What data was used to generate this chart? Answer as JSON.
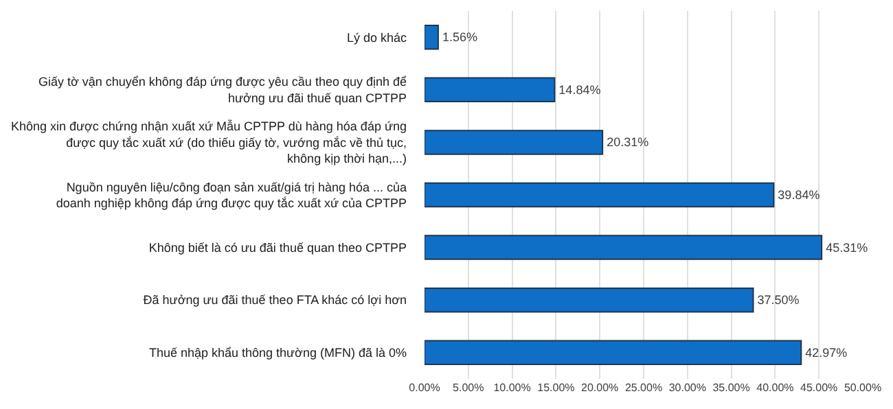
{
  "chart_data": {
    "type": "bar",
    "orientation": "horizontal",
    "categories": [
      "Lý do khác",
      "Giấy tờ vận chuyển không đáp ứng được yêu cầu theo quy định để hưởng ưu đãi thuế quan CPTPP",
      "Không xin được chứng nhận xuất xứ Mẫu CPTPP dù hàng hóa đáp ứng được quy tắc xuất xứ (do thiếu giấy tờ, vướng mắc về thủ tục, không kịp thời hạn,...)",
      "Nguồn nguyên liệu/công đoạn sản xuất/giá trị hàng hóa ... của doanh nghiệp không đáp ứng được quy tắc xuất xứ của CPTPP",
      "Không biết là có ưu đãi thuế quan theo CPTPP",
      "Đã hưởng ưu đãi thuế theo FTA khác có lợi hơn",
      "Thuế nhập khẩu thông thường (MFN) đã là 0%"
    ],
    "values": [
      1.56,
      14.84,
      20.31,
      39.84,
      45.31,
      37.5,
      42.97
    ],
    "value_labels": [
      "1.56%",
      "14.84%",
      "20.31%",
      "39.84%",
      "45.31%",
      "37.50%",
      "42.97%"
    ],
    "color": "#0f6fc6",
    "xlim": [
      0,
      50
    ],
    "xticks": [
      {
        "value": 0,
        "label": "0.00%"
      },
      {
        "value": 5,
        "label": "5.00%"
      },
      {
        "value": 10,
        "label": "10.00%"
      },
      {
        "value": 15,
        "label": "15.00%"
      },
      {
        "value": 20,
        "label": "20.00%"
      },
      {
        "value": 25,
        "label": "25.00%"
      },
      {
        "value": 30,
        "label": "30.00%"
      },
      {
        "value": 35,
        "label": "35.00%"
      },
      {
        "value": 40,
        "label": "40.00%"
      },
      {
        "value": 45,
        "label": "45.00%"
      },
      {
        "value": 50,
        "label": "50.00%"
      }
    ],
    "grid": "x",
    "legend": false
  }
}
